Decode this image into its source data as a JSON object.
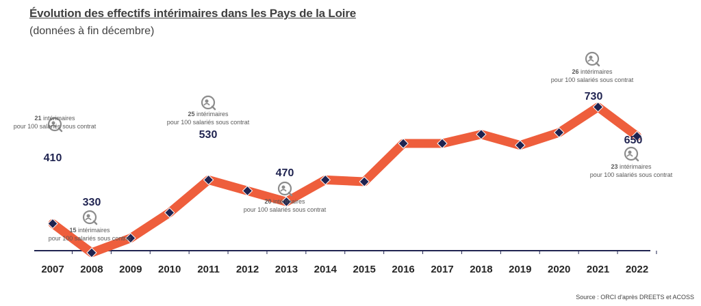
{
  "title": "Évolution des effectifs intérimaires dans les Pays de la Loire",
  "subtitle": "(données à fin décembre)",
  "source": "Source : ORCI d'après DREETS et ACOSS",
  "colors": {
    "line": "#ee5e3c",
    "marker": "#1f2350",
    "axis": "#1f2350",
    "icon": "#8c8c8c"
  },
  "chart_data": {
    "type": "line",
    "title": "Évolution des effectifs intérimaires dans les Pays de la Loire",
    "subtitle": "(données à fin décembre)",
    "categories": [
      "2007",
      "2008",
      "2009",
      "2010",
      "2011",
      "2012",
      "2013",
      "2014",
      "2015",
      "2016",
      "2017",
      "2018",
      "2019",
      "2020",
      "2021",
      "2022"
    ],
    "values": [
      410,
      330,
      370,
      440,
      530,
      500,
      470,
      530,
      525,
      630,
      630,
      655,
      625,
      660,
      730,
      650
    ],
    "data_labels": [
      {
        "year": "2007",
        "value": "410",
        "count": "21",
        "text": " intérimaires",
        "line2": "pour 100 salariés sous contrat"
      },
      {
        "year": "2008",
        "value": "330",
        "count": "15",
        "text": " intérimaires",
        "line2": "pour 100 salariés sous contrat"
      },
      {
        "year": "2011",
        "value": "530",
        "count": "25",
        "text": " intérimaires",
        "line2": "pour 100 salariés sous contrat"
      },
      {
        "year": "2013",
        "value": "470",
        "count": "20",
        "text": " intérimaires",
        "line2": "pour 100 salariés sous contrat"
      },
      {
        "year": "2021",
        "value": "730",
        "count": "26",
        "text": " intérimaires",
        "line2": "pour 100 salariés sous contrat"
      },
      {
        "year": "2022",
        "value": "650",
        "count": "23",
        "text": " intérimaires",
        "line2": "pour 100 salariés sous contrat"
      }
    ],
    "icon": "person-search-icon",
    "grid": false,
    "legend": "none"
  }
}
